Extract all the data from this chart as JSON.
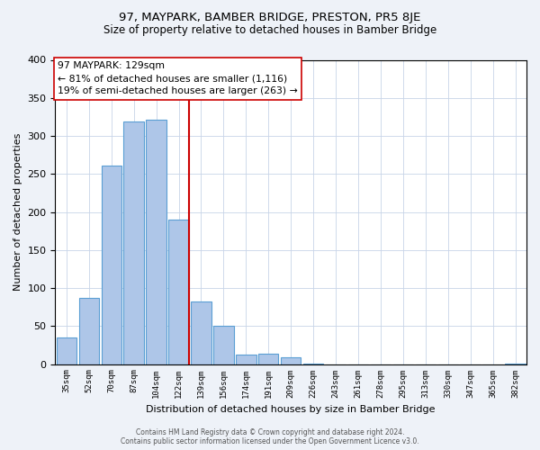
{
  "title": "97, MAYPARK, BAMBER BRIDGE, PRESTON, PR5 8JE",
  "subtitle": "Size of property relative to detached houses in Bamber Bridge",
  "xlabel": "Distribution of detached houses by size in Bamber Bridge",
  "ylabel": "Number of detached properties",
  "bar_labels": [
    "35sqm",
    "52sqm",
    "70sqm",
    "87sqm",
    "104sqm",
    "122sqm",
    "139sqm",
    "156sqm",
    "174sqm",
    "191sqm",
    "209sqm",
    "226sqm",
    "243sqm",
    "261sqm",
    "278sqm",
    "295sqm",
    "313sqm",
    "330sqm",
    "347sqm",
    "365sqm",
    "382sqm"
  ],
  "bar_values": [
    35,
    87,
    261,
    319,
    321,
    190,
    82,
    50,
    13,
    14,
    9,
    1,
    0,
    0,
    0,
    0,
    0,
    0,
    0,
    0,
    1
  ],
  "bar_color": "#aec6e8",
  "bar_edge_color": "#5a9fd4",
  "highlight_line_idx": 5,
  "highlight_line_color": "#cc0000",
  "ylim": [
    0,
    400
  ],
  "yticks": [
    0,
    50,
    100,
    150,
    200,
    250,
    300,
    350,
    400
  ],
  "annotation_title": "97 MAYPARK: 129sqm",
  "annotation_line1": "← 81% of detached houses are smaller (1,116)",
  "annotation_line2": "19% of semi-detached houses are larger (263) →",
  "annotation_box_color": "#ffffff",
  "annotation_box_edge": "#cc0000",
  "footer_line1": "Contains HM Land Registry data © Crown copyright and database right 2024.",
  "footer_line2": "Contains public sector information licensed under the Open Government Licence v3.0.",
  "bg_color": "#eef2f8",
  "plot_bg_color": "#ffffff"
}
